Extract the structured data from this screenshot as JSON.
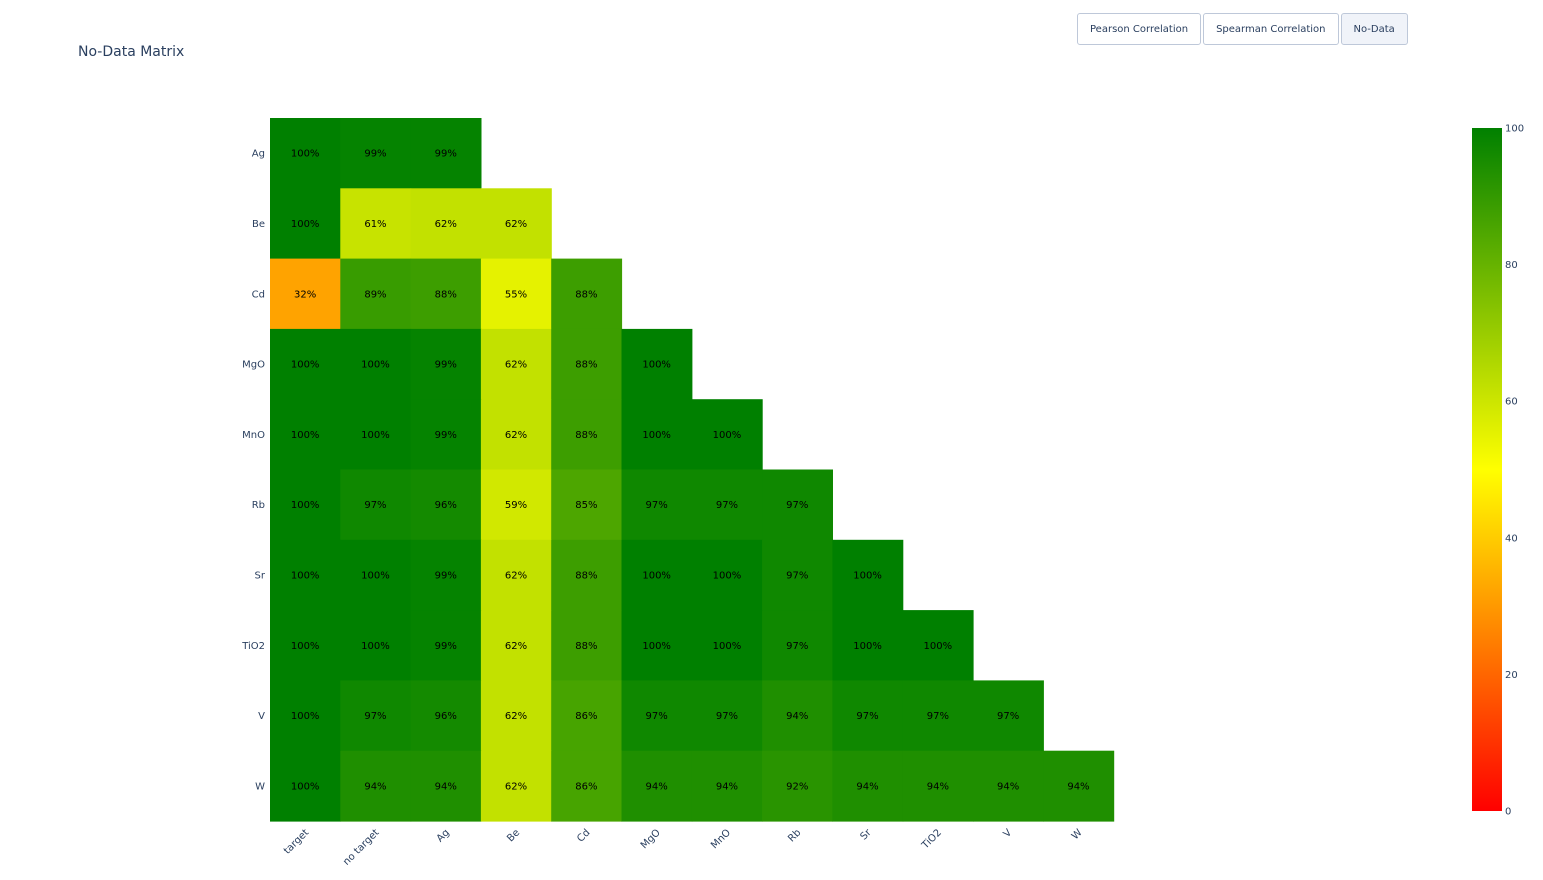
{
  "title": "No-Data Matrix",
  "buttons": [
    {
      "label": "Pearson Correlation",
      "active": false
    },
    {
      "label": "Spearman Correlation",
      "active": false
    },
    {
      "label": "No-Data",
      "active": true
    }
  ],
  "chart_data": {
    "type": "heatmap",
    "title": "No-Data Matrix",
    "x_categories": [
      "target",
      "no target",
      "Ag",
      "Be",
      "Cd",
      "MgO",
      "MnO",
      "Rb",
      "Sr",
      "TiO2",
      "V",
      "W"
    ],
    "y_categories": [
      "Ag",
      "Be",
      "Cd",
      "MgO",
      "MnO",
      "Rb",
      "Sr",
      "TiO2",
      "V",
      "W"
    ],
    "values": [
      [
        100,
        99,
        99,
        null,
        null,
        null,
        null,
        null,
        null,
        null,
        null,
        null
      ],
      [
        100,
        61,
        62,
        62,
        null,
        null,
        null,
        null,
        null,
        null,
        null,
        null
      ],
      [
        32,
        89,
        88,
        55,
        88,
        null,
        null,
        null,
        null,
        null,
        null,
        null
      ],
      [
        100,
        100,
        99,
        62,
        88,
        100,
        null,
        null,
        null,
        null,
        null,
        null
      ],
      [
        100,
        100,
        99,
        62,
        88,
        100,
        100,
        null,
        null,
        null,
        null,
        null
      ],
      [
        100,
        97,
        96,
        59,
        85,
        97,
        97,
        97,
        null,
        null,
        null,
        null
      ],
      [
        100,
        100,
        99,
        62,
        88,
        100,
        100,
        97,
        100,
        null,
        null,
        null
      ],
      [
        100,
        100,
        99,
        62,
        88,
        100,
        100,
        97,
        100,
        100,
        null,
        null
      ],
      [
        100,
        97,
        96,
        62,
        86,
        97,
        97,
        94,
        97,
        97,
        97,
        null
      ],
      [
        100,
        94,
        94,
        62,
        86,
        94,
        94,
        92,
        94,
        94,
        94,
        94
      ]
    ],
    "value_suffix": "%",
    "colorscale": [
      [
        0,
        "#ff0000"
      ],
      [
        0.5,
        "#ffff00"
      ],
      [
        1,
        "#008000"
      ]
    ],
    "zmin": 0,
    "zmax": 100,
    "colorbar_ticks": [
      0,
      20,
      40,
      60,
      80,
      100
    ]
  }
}
